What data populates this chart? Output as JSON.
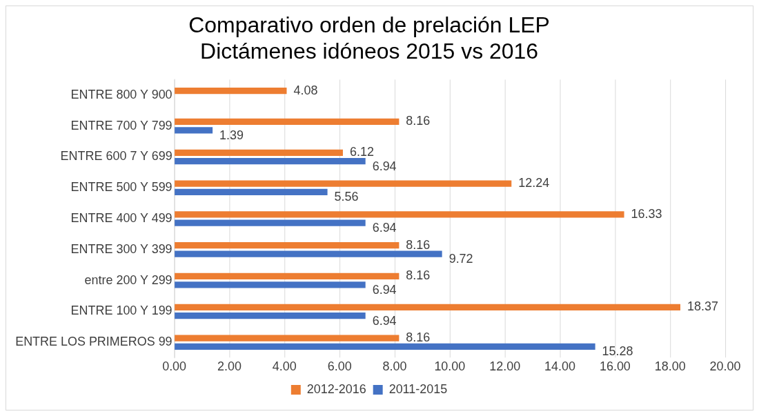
{
  "chart_data": {
    "type": "bar",
    "orientation": "horizontal",
    "title": "Comparativo orden de prelación LEP\nDictámenes idóneos 2015 vs 2016",
    "categories": [
      "ENTRE 800 Y 900",
      "ENTRE 700 Y 799",
      "ENTRE 600 7 Y 699",
      "ENTRE 500 Y 599",
      "ENTRE 400 Y 499",
      "ENTRE 300 Y 399",
      "entre 200 Y 299",
      "ENTRE 100 Y 199",
      "ENTRE LOS PRIMEROS 99"
    ],
    "series": [
      {
        "name": "2012-2016",
        "color": "#ed7d31",
        "values": [
          4.08,
          8.16,
          6.12,
          12.24,
          16.33,
          8.16,
          8.16,
          18.37,
          8.16
        ]
      },
      {
        "name": "2011-2015",
        "color": "#4472c4",
        "values": [
          null,
          1.39,
          6.94,
          5.56,
          6.94,
          9.72,
          6.94,
          6.94,
          15.28
        ]
      }
    ],
    "xlim": [
      0,
      20
    ],
    "xticks": [
      {
        "value": 0,
        "label": "0.00"
      },
      {
        "value": 2,
        "label": "2.00"
      },
      {
        "value": 4,
        "label": "4.00"
      },
      {
        "value": 6,
        "label": "6.00"
      },
      {
        "value": 8,
        "label": "8.00"
      },
      {
        "value": 10,
        "label": "10.00"
      },
      {
        "value": 12,
        "label": "12.00"
      },
      {
        "value": 14,
        "label": "14.00"
      },
      {
        "value": 16,
        "label": "16.00"
      },
      {
        "value": 18,
        "label": "18.00"
      },
      {
        "value": 20,
        "label": "20.00"
      }
    ],
    "grid": "x",
    "legend": "bottom",
    "data_labels": true
  }
}
